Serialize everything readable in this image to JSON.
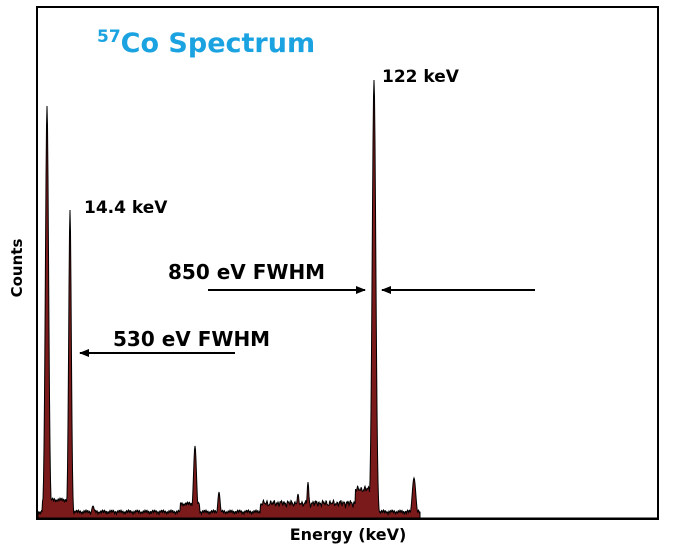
{
  "chart_data": {
    "type": "area",
    "title_superscript": "57",
    "title_main": "Co Spectrum",
    "title_color": "#1aa3e0",
    "xlabel": "Energy (keV)",
    "ylabel": "Counts",
    "grid": false,
    "legend": "none",
    "series_fill": "#7a1a1a",
    "series_stroke": "#000000",
    "peak_labels": [
      {
        "text": "122 keV",
        "energy_keV": 122
      },
      {
        "text": "14.4 keV",
        "energy_keV": 14.4
      }
    ],
    "fwhm_annotations": [
      {
        "text": "850 eV FWHM",
        "peak_keV": 122,
        "fwhm_eV": 850
      },
      {
        "text": "530 eV FWHM",
        "peak_keV": 14.4,
        "fwhm_eV": 530
      }
    ]
  }
}
